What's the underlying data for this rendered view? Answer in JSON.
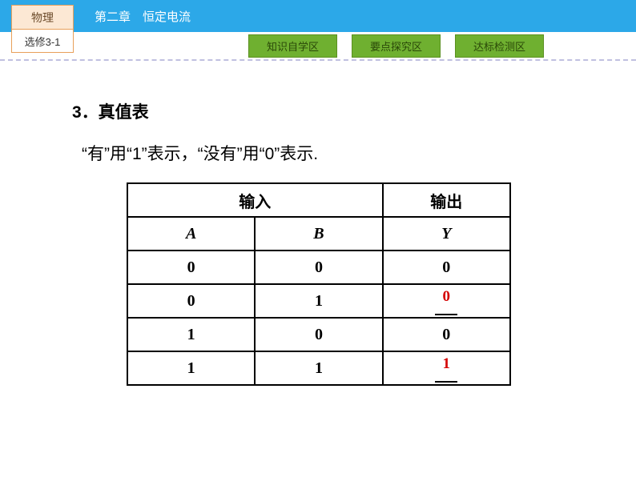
{
  "header": {
    "chapter_title": "第二章　恒定电流",
    "header_bg": "#2ca8e8",
    "header_text_color": "#ffffff"
  },
  "subject_box": {
    "top_label": "物理",
    "bottom_label": "选修3-1",
    "border_color": "#e8a05a",
    "top_bg": "#fce8d4"
  },
  "nav": {
    "buttons": [
      "知识自学区",
      "要点探究区",
      "达标检测区"
    ],
    "btn_bg": "#6fb030",
    "btn_text_color": "#2a4808"
  },
  "content": {
    "section_number": "3",
    "section_title": "．真值表",
    "description": "“有”用“1”表示，“没有”用“0”表示."
  },
  "table": {
    "header_input": "输入",
    "header_output": "输出",
    "col_a": "A",
    "col_b": "B",
    "col_y": "Y",
    "rows": [
      {
        "a": "0",
        "b": "0",
        "y": "0",
        "blank": false
      },
      {
        "a": "0",
        "b": "1",
        "y": "0",
        "blank": true
      },
      {
        "a": "1",
        "b": "0",
        "y": "0",
        "blank": false
      },
      {
        "a": "1",
        "b": "1",
        "y": "1",
        "blank": true
      }
    ],
    "answer_color": "#d40000"
  }
}
